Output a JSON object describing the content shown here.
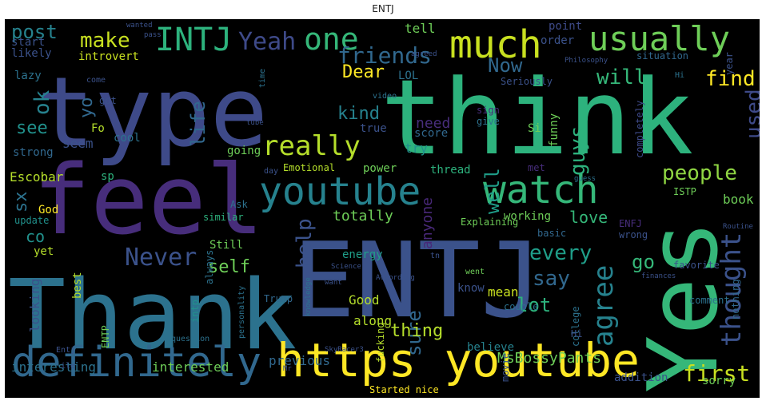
{
  "title": "ENTJ",
  "palette": [
    "#440154",
    "#3b528b",
    "#21918c",
    "#5ec962",
    "#fde725",
    "#2c728e",
    "#472d7b",
    "#27ad81",
    "#addc30",
    "#3e4a89",
    "#1f9e89",
    "#7ad151"
  ],
  "words": [
    {
      "text": "type",
      "color": "#3e4a89"
    },
    {
      "text": "think",
      "color": "#2db27d"
    },
    {
      "text": "Thank",
      "color": "#2c728e"
    },
    {
      "text": "ENTJ",
      "color": "#3b528b"
    },
    {
      "text": "feel",
      "color": "#472d7b"
    },
    {
      "text": "Yes",
      "color": "#35b779"
    },
    {
      "text": "https youtube",
      "color": "#fde725"
    },
    {
      "text": "definitely",
      "color": "#31688e"
    },
    {
      "text": "youtube",
      "color": "#26828e"
    },
    {
      "text": "watch",
      "color": "#35b779"
    },
    {
      "text": "much",
      "color": "#c8e020"
    },
    {
      "text": "usually",
      "color": "#6ece58"
    },
    {
      "text": "INTJ",
      "color": "#2db27d"
    },
    {
      "text": "one",
      "color": "#35b779"
    },
    {
      "text": "Yeah",
      "color": "#3e4a89"
    },
    {
      "text": "really",
      "color": "#b5de2b"
    },
    {
      "text": "friends",
      "color": "#31688e"
    },
    {
      "text": "people",
      "color": "#90d743"
    },
    {
      "text": "agree",
      "color": "#26828e"
    },
    {
      "text": "thought",
      "color": "#3b528b"
    },
    {
      "text": "Never",
      "color": "#3b528b"
    },
    {
      "text": "first",
      "color": "#c8e020"
    },
    {
      "text": "post",
      "color": "#26828e"
    },
    {
      "text": "make",
      "color": "#c8e020"
    },
    {
      "text": "life",
      "color": "#31688e"
    },
    {
      "text": "Now",
      "color": "#31688e"
    },
    {
      "text": "will",
      "color": "#35b779"
    },
    {
      "text": "Dear",
      "color": "#fde725"
    },
    {
      "text": "find",
      "color": "#fde725"
    },
    {
      "text": "guys",
      "color": "#2db27d"
    },
    {
      "text": "used",
      "color": "#3e4a89"
    },
    {
      "text": "kind",
      "color": "#26828e"
    },
    {
      "text": "every",
      "color": "#1f9e89"
    },
    {
      "text": "say",
      "color": "#31688e"
    },
    {
      "text": "go",
      "color": "#35b779"
    },
    {
      "text": "self",
      "color": "#6ece58"
    },
    {
      "text": "help",
      "color": "#3b528b"
    },
    {
      "text": "well",
      "color": "#1f9e89"
    },
    {
      "text": "lot",
      "color": "#2db27d"
    },
    {
      "text": "sure",
      "color": "#31688e"
    },
    {
      "text": "thing",
      "color": "#b5de2b"
    },
    {
      "text": "see",
      "color": "#21918c"
    },
    {
      "text": "ok",
      "color": "#26828e"
    },
    {
      "text": "sx",
      "color": "#2c728e"
    },
    {
      "text": "co",
      "color": "#21918c"
    },
    {
      "text": "yo",
      "color": "#31688e"
    },
    {
      "text": "need",
      "color": "#472d7b"
    },
    {
      "text": "totally",
      "color": "#6ece58"
    },
    {
      "text": "anyone",
      "color": "#482878"
    },
    {
      "text": "love",
      "color": "#35b779"
    },
    {
      "text": "book",
      "color": "#6ece58"
    },
    {
      "text": "mean",
      "color": "#c8e020"
    },
    {
      "text": "Good",
      "color": "#b5de2b"
    },
    {
      "text": "previous",
      "color": "#31688e"
    },
    {
      "text": "interesting",
      "color": "#2c728e"
    },
    {
      "text": "interested",
      "color": "#6ece58"
    },
    {
      "text": "MsBossyPants",
      "color": "#6ece58"
    },
    {
      "text": "looking",
      "color": "#3b528b"
    },
    {
      "text": "believe",
      "color": "#26828e"
    },
    {
      "text": "along",
      "color": "#b5de2b"
    },
    {
      "text": "tell",
      "color": "#6ece58"
    },
    {
      "text": "order",
      "color": "#3b528b"
    },
    {
      "text": "point",
      "color": "#3e4a89"
    },
    {
      "text": "start",
      "color": "#3b528b"
    },
    {
      "text": "likely",
      "color": "#3b528b"
    },
    {
      "text": "lazy",
      "color": "#2c728e"
    },
    {
      "text": "introvert",
      "color": "#c8e020"
    },
    {
      "text": "situation",
      "color": "#31688e"
    },
    {
      "text": "LOL",
      "color": "#2c728e"
    },
    {
      "text": "Seriously",
      "color": "#3b528b"
    },
    {
      "text": "Hi",
      "color": "#2c728e"
    },
    {
      "text": "seem",
      "color": "#3b528b"
    },
    {
      "text": "Fo",
      "color": "#b5de2b"
    },
    {
      "text": "cool",
      "color": "#2c728e"
    },
    {
      "text": "true",
      "color": "#3b528b"
    },
    {
      "text": "Si",
      "color": "#6ece58"
    },
    {
      "text": "funny",
      "color": "#6ece58"
    },
    {
      "text": "score",
      "color": "#31688e"
    },
    {
      "text": "try",
      "color": "#21918c"
    },
    {
      "text": "strong",
      "color": "#31688e"
    },
    {
      "text": "going",
      "color": "#6ece58"
    },
    {
      "text": "Escobar",
      "color": "#b5de2b"
    },
    {
      "text": "Emotional",
      "color": "#b5de2b"
    },
    {
      "text": "thread",
      "color": "#2db27d"
    },
    {
      "text": "power",
      "color": "#6ece58"
    },
    {
      "text": "met",
      "color": "#472d7b"
    },
    {
      "text": "God",
      "color": "#fde725"
    },
    {
      "text": "update",
      "color": "#21918c"
    },
    {
      "text": "similar",
      "color": "#2db27d"
    },
    {
      "text": "working",
      "color": "#6ece58"
    },
    {
      "text": "basic",
      "color": "#31688e"
    },
    {
      "text": "wrong",
      "color": "#3b528b"
    },
    {
      "text": "ENFJ",
      "color": "#472d7b"
    },
    {
      "text": "ISTP",
      "color": "#6ece58"
    },
    {
      "text": "Still",
      "color": "#6ece58"
    },
    {
      "text": "yet",
      "color": "#b5de2b"
    },
    {
      "text": "energy",
      "color": "#1f9e89"
    },
    {
      "text": "Explaining",
      "color": "#6ece58"
    },
    {
      "text": "know",
      "color": "#3b528b"
    },
    {
      "text": "couple",
      "color": "#2c728e"
    },
    {
      "text": "best",
      "color": "#b5de2b"
    },
    {
      "text": "ENTP",
      "color": "#6ece58"
    },
    {
      "text": "college",
      "color": "#2c728e"
    },
    {
      "text": "addition",
      "color": "#3b528b"
    },
    {
      "text": "sorry",
      "color": "#6ece58"
    },
    {
      "text": "Started nice",
      "color": "#fde725"
    },
    {
      "text": "comment",
      "color": "#2c728e"
    },
    {
      "text": "nothing",
      "color": "#31688e"
    },
    {
      "text": "favorite",
      "color": "#3b528b"
    },
    {
      "text": "completely",
      "color": "#3e4a89"
    },
    {
      "text": "sign",
      "color": "#472d7b"
    },
    {
      "text": "give",
      "color": "#2c728e"
    },
    {
      "text": "video",
      "color": "#2c728e"
    },
    {
      "text": "come",
      "color": "#3b528b"
    },
    {
      "text": "got",
      "color": "#3b528b"
    },
    {
      "text": "time",
      "color": "#2c728e"
    },
    {
      "text": "year",
      "color": "#3b528b"
    },
    {
      "text": "intp",
      "color": "#21918c"
    },
    {
      "text": "question",
      "color": "#2c728e"
    },
    {
      "text": "Ask",
      "color": "#2c728e"
    },
    {
      "text": "always",
      "color": "#2c728e"
    },
    {
      "text": "Trump",
      "color": "#31688e"
    },
    {
      "text": "went",
      "color": "#6ece58"
    },
    {
      "text": "fucking",
      "color": "#b5de2b"
    },
    {
      "text": "Entj",
      "color": "#3b528b"
    },
    {
      "text": "ile",
      "color": "#3b528b"
    },
    {
      "text": "sp",
      "color": "#2db27d"
    },
    {
      "text": "day",
      "color": "#3b528b"
    },
    {
      "text": "tn",
      "color": "#3b528b"
    },
    {
      "text": "Hi",
      "color": "#3b528b"
    },
    {
      "text": "movie",
      "color": "#3b528b"
    },
    {
      "text": "personality",
      "color": "#2c728e"
    },
    {
      "text": "agreed",
      "color": "#3b528b"
    },
    {
      "text": "wanted",
      "color": "#3b528b"
    },
    {
      "text": "Philosophy",
      "color": "#3b528b"
    },
    {
      "text": "According",
      "color": "#3b528b"
    },
    {
      "text": "guess",
      "color": "#2c728e"
    },
    {
      "text": "Science",
      "color": "#3b528b"
    },
    {
      "text": "Mr",
      "color": "#3b528b"
    },
    {
      "text": "SkyRacer3",
      "color": "#3b528b"
    },
    {
      "text": "want",
      "color": "#3b528b"
    },
    {
      "text": "pass",
      "color": "#3b528b"
    },
    {
      "text": "knowledge",
      "color": "#2c728e"
    },
    {
      "text": "tube",
      "color": "#3b528b"
    },
    {
      "text": "Routine",
      "color": "#3b528b"
    },
    {
      "text": "finances",
      "color": "#3b528b"
    }
  ]
}
